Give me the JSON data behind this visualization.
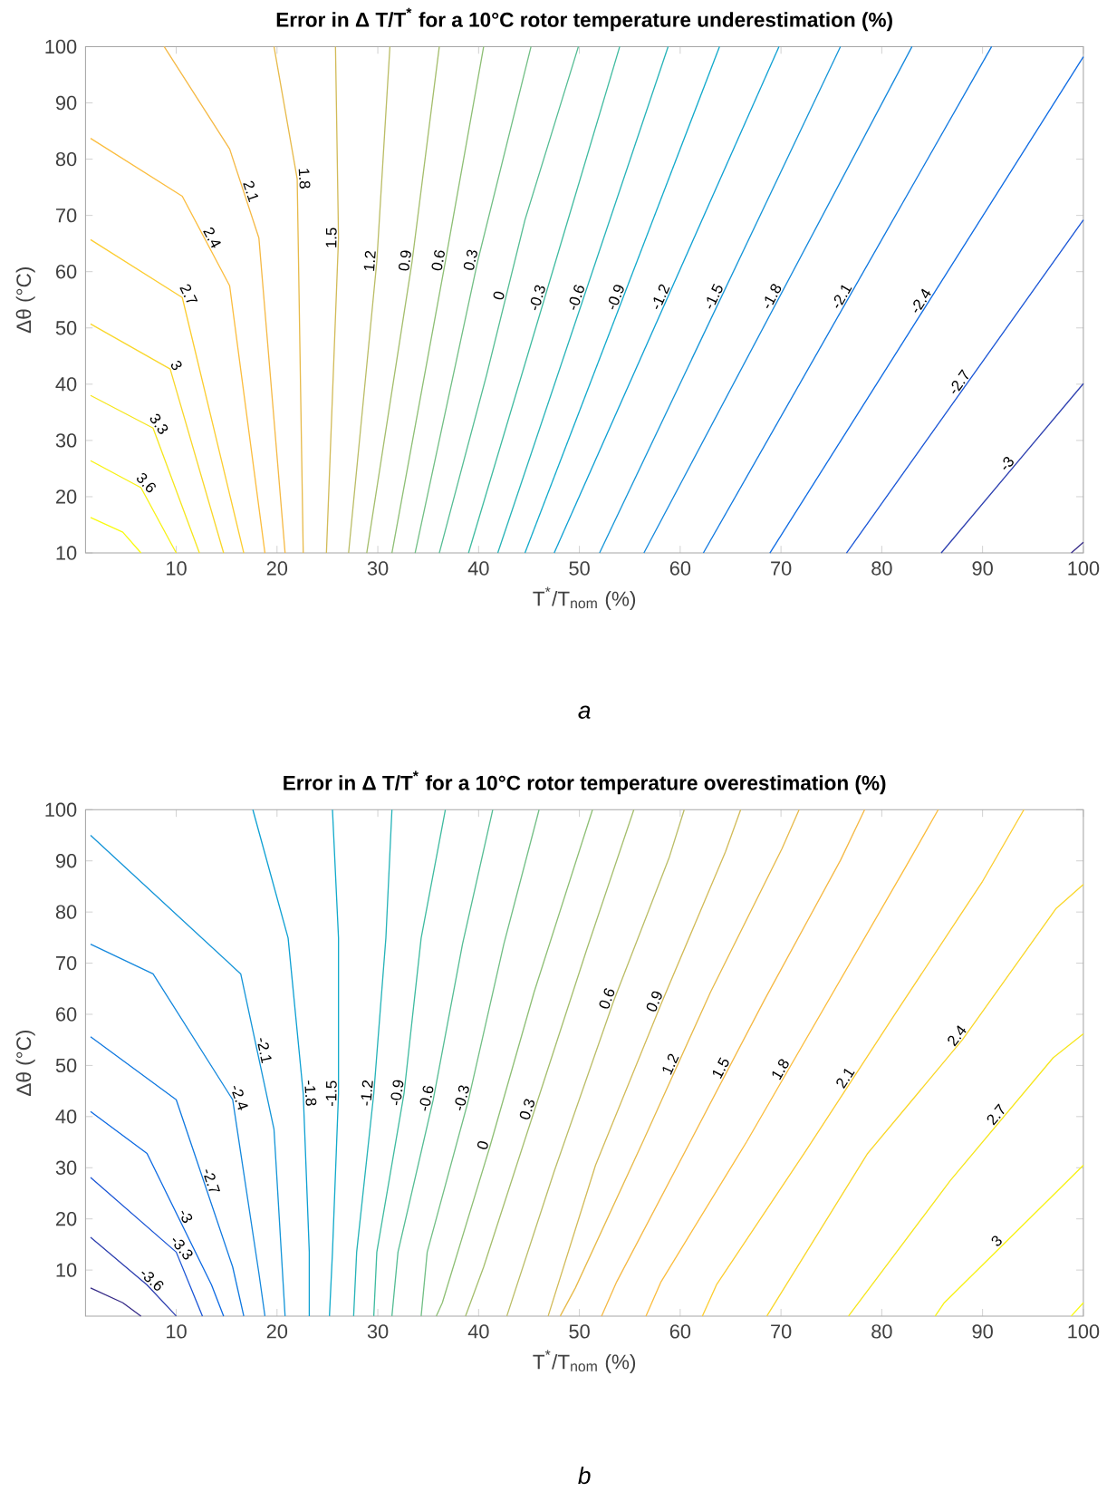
{
  "chart_data": [
    {
      "type": "line",
      "title": "Error in Δ T/T$^{*}$ for a 10°C rotor temperature underestimation (%)",
      "xlabel": "T$^{*}$/T$_{nom}$ (%)",
      "ylabel": "Δθ (°C)",
      "annotations": [
        "a"
      ],
      "xlim": [
        1,
        100
      ],
      "ylim": [
        10,
        100
      ],
      "xticks": [
        10,
        20,
        30,
        40,
        50,
        60,
        70,
        80,
        90,
        100
      ],
      "yticks": [
        10,
        20,
        30,
        40,
        50,
        60,
        70,
        80,
        90,
        100
      ],
      "series": [
        {
          "color": "#f9fb0e",
          "x": [
            1.5,
            4.7,
            6.5
          ],
          "values": [
            16.3,
            13.7,
            10
          ]
        },
        {
          "name": "3.6",
          "color": "#f8f213",
          "x": [
            1.5,
            6.5,
            10
          ],
          "values": [
            26.4,
            21.6,
            10
          ]
        },
        {
          "name": "3.3",
          "color": "#f6e61d",
          "x": [
            1.5,
            7.7,
            12.3
          ],
          "values": [
            38,
            32.2,
            10
          ]
        },
        {
          "name": "3",
          "color": "#f9d72a",
          "x": [
            1.5,
            9.4,
            14.7
          ],
          "values": [
            50.7,
            42.7,
            10
          ]
        },
        {
          "name": "2.7",
          "color": "#fccd30",
          "x": [
            1.5,
            10.6,
            16.7
          ],
          "values": [
            65.7,
            55.4,
            10
          ]
        },
        {
          "name": "2.4",
          "color": "#fbbd3e",
          "x": [
            1.5,
            10.6,
            15.3,
            18.8
          ],
          "values": [
            83.7,
            73.4,
            57.5,
            10
          ]
        },
        {
          "name": "2.1",
          "color": "#f5b945",
          "x": [
            8.8,
            15.3,
            18.2,
            20.8
          ],
          "values": [
            100,
            81.8,
            66,
            10
          ]
        },
        {
          "name": "1.8",
          "color": "#e7ba4a",
          "x": [
            19.7,
            22,
            22.6
          ],
          "values": [
            100,
            76.5,
            10
          ]
        },
        {
          "name": "1.5",
          "color": "#d2bb58",
          "x": [
            25.8,
            26.1,
            24.9
          ],
          "values": [
            100,
            66,
            10
          ]
        },
        {
          "name": "1.2",
          "color": "#bbbd66",
          "x": [
            31.2,
            29.9,
            27.1
          ],
          "values": [
            100,
            61.8,
            10
          ]
        },
        {
          "name": "0.9",
          "color": "#a5be6d",
          "x": [
            36.1,
            33.4,
            28.9
          ],
          "values": [
            100,
            61.8,
            10
          ]
        },
        {
          "name": "0.6",
          "color": "#8ebf75",
          "x": [
            40.5,
            36.7,
            31.4
          ],
          "values": [
            100,
            61.8,
            10
          ]
        },
        {
          "name": "0.3",
          "color": "#72bf85",
          "x": [
            45.2,
            39.9,
            33.7
          ],
          "values": [
            100,
            61.8,
            10
          ]
        },
        {
          "name": "0",
          "color": "#55bd94",
          "x": [
            49.9,
            44.6,
            40.8,
            36.1
          ],
          "values": [
            100,
            69.2,
            41.7,
            10
          ]
        },
        {
          "name": "-0.3",
          "color": "#3fbba0",
          "x": [
            39,
            54
          ],
          "values": [
            10,
            100
          ]
        },
        {
          "name": "-0.6",
          "color": "#26b3b8",
          "x": [
            41.9,
            58.8
          ],
          "values": [
            10,
            100
          ]
        },
        {
          "name": "-0.9",
          "color": "#12aacb",
          "x": [
            44.6,
            63.9
          ],
          "values": [
            10,
            100
          ]
        },
        {
          "name": "-1.2",
          "color": "#0ea0d3",
          "x": [
            47.5,
            69.8
          ],
          "values": [
            10,
            100
          ]
        },
        {
          "name": "-1.5",
          "color": "#1495d8",
          "x": [
            52,
            75.9
          ],
          "values": [
            10,
            100
          ]
        },
        {
          "name": "-1.8",
          "color": "#1488dd",
          "x": [
            56.4,
            83
          ],
          "values": [
            10,
            100
          ]
        },
        {
          "name": "-2.1",
          "color": "#0f78e0",
          "x": [
            62.3,
            90.9
          ],
          "values": [
            10,
            100
          ]
        },
        {
          "name": "-2.4",
          "color": "#0d6ae3",
          "x": [
            68.9,
            100
          ],
          "values": [
            10,
            98.2
          ]
        },
        {
          "name": "-2.7",
          "color": "#1a55d6",
          "x": [
            76.5,
            100
          ],
          "values": [
            10,
            69.2
          ]
        },
        {
          "name": "-3",
          "color": "#2d3fb0",
          "x": [
            85.9,
            100
          ],
          "values": [
            10,
            40.1
          ]
        },
        {
          "color": "#352a87",
          "x": [
            98.8,
            100
          ],
          "values": [
            10,
            11.9
          ]
        }
      ]
    },
    {
      "type": "line",
      "title": "Error in Δ T/T$^{*}$ for a 10°C rotor temperature overestimation (%)",
      "xlabel": "T$^{*}$/T$_{nom}$ (%)",
      "ylabel": "Δθ (°C)",
      "annotations": [
        "b"
      ],
      "xlim": [
        1,
        100
      ],
      "ylim": [
        1,
        100
      ],
      "xticks": [
        10,
        20,
        30,
        40,
        50,
        60,
        70,
        80,
        90,
        100
      ],
      "yticks": [
        10,
        20,
        30,
        40,
        50,
        60,
        70,
        80,
        90,
        100
      ],
      "series": [
        {
          "color": "#352a87",
          "x": [
            1.5,
            4.7,
            6.5
          ],
          "values": [
            6.5,
            3.6,
            1
          ]
        },
        {
          "name": "-3.6",
          "color": "#2d3fb0",
          "x": [
            1.5,
            7.1,
            10
          ],
          "values": [
            16.4,
            7.1,
            1
          ]
        },
        {
          "name": "-3.3",
          "color": "#1a55d6",
          "x": [
            1.5,
            10,
            12.6
          ],
          "values": [
            28.1,
            13.5,
            1
          ]
        },
        {
          "name": "-3",
          "color": "#0d6ae3",
          "x": [
            1.5,
            7.1,
            13.5,
            14.7
          ],
          "values": [
            41,
            32.8,
            7.1,
            1
          ]
        },
        {
          "name": "-2.7",
          "color": "#0f78e0",
          "x": [
            1.5,
            10,
            15.6,
            16.7
          ],
          "values": [
            55.6,
            43.3,
            10.6,
            1
          ]
        },
        {
          "name": "-2.4",
          "color": "#1488dd",
          "x": [
            1.5,
            7.7,
            15.6,
            18.2,
            18.8
          ],
          "values": [
            73.7,
            67.9,
            43.3,
            9.4,
            1
          ]
        },
        {
          "name": "-2.1",
          "color": "#1495d8",
          "x": [
            1.5,
            16.4,
            19.7,
            20.8
          ],
          "values": [
            95,
            67.9,
            37.5,
            1
          ]
        },
        {
          "name": "-1.8",
          "color": "#0ea0d3",
          "x": [
            17.6,
            21.1,
            22.6,
            23.2,
            23.2
          ],
          "values": [
            100,
            74.9,
            44.5,
            13.5,
            1
          ]
        },
        {
          "name": "-1.5",
          "color": "#12aacb",
          "x": [
            25.5,
            26.1,
            26.1,
            25.5,
            25.2
          ],
          "values": [
            100,
            74.9,
            44.5,
            13.5,
            1
          ]
        },
        {
          "name": "-1.2",
          "color": "#26b3b8",
          "x": [
            31.4,
            30.8,
            29.6,
            27.9,
            27.6
          ],
          "values": [
            100,
            74.9,
            44.5,
            13.5,
            1
          ]
        },
        {
          "name": "-0.9",
          "color": "#3fbba0",
          "x": [
            36.7,
            34.3,
            32.6,
            29.9,
            29.6
          ],
          "values": [
            100,
            74.9,
            44.5,
            13.5,
            1
          ]
        },
        {
          "name": "-0.6",
          "color": "#55bd94",
          "x": [
            41.4,
            38.4,
            35.5,
            32,
            31.4
          ],
          "values": [
            100,
            73.7,
            43.3,
            13.5,
            1
          ]
        },
        {
          "name": "-0.3",
          "color": "#72bf85",
          "x": [
            46,
            42.5,
            39,
            34.9,
            34.3
          ],
          "values": [
            100,
            73.7,
            43.3,
            13.5,
            1
          ]
        },
        {
          "name": "0",
          "color": "#8ebf75",
          "x": [
            51.3,
            45.5,
            41.1,
            36.4,
            35.8
          ],
          "values": [
            100,
            64.3,
            34,
            3.6,
            1
          ]
        },
        {
          "name": "0.3",
          "color": "#a5be6d",
          "x": [
            55.4,
            50.7,
            45.5,
            40.5,
            38.7
          ],
          "values": [
            100,
            72.5,
            41,
            10.6,
            1
          ]
        },
        {
          "name": "0.6",
          "color": "#bbbd66",
          "x": [
            60.4,
            58.9,
            53.4,
            47.5,
            42.8
          ],
          "values": [
            100,
            90.6,
            62.6,
            29.3,
            1
          ]
        },
        {
          "name": "0.9",
          "color": "#d2bb58",
          "x": [
            66,
            64.5,
            58.1,
            51.6,
            46.9
          ],
          "values": [
            100,
            91.8,
            62,
            30.5,
            1
          ]
        },
        {
          "name": "1.2",
          "color": "#e7ba4a",
          "x": [
            71.8,
            70.1,
            63,
            56.3,
            49.6,
            48.1
          ],
          "values": [
            100,
            92.4,
            64.3,
            35.1,
            6.5,
            1
          ]
        },
        {
          "name": "1.5",
          "color": "#f5b945",
          "x": [
            78.3,
            75.9,
            68.3,
            61,
            53.7,
            52.2
          ],
          "values": [
            100,
            90.1,
            62.6,
            35.1,
            7.7,
            1
          ]
        },
        {
          "name": "1.8",
          "color": "#fbbd3e",
          "x": [
            85.6,
            82.4,
            74.5,
            66.6,
            58.1,
            56.6
          ],
          "values": [
            100,
            88.9,
            62,
            35.1,
            7.7,
            1
          ]
        },
        {
          "name": "2.1",
          "color": "#fccd30",
          "x": [
            94.1,
            90,
            81.2,
            72.7,
            63.6,
            62.2
          ],
          "values": [
            100,
            86,
            59.7,
            34,
            7.1,
            1
          ]
        },
        {
          "name": "2.4",
          "color": "#f9d72a",
          "x": [
            100,
            97.3,
            88,
            78.6,
            68.6
          ],
          "values": [
            85.4,
            80.7,
            55,
            32.8,
            1
          ]
        },
        {
          "name": "2.7",
          "color": "#f6e61d",
          "x": [
            100,
            97,
            86.8,
            76.7
          ],
          "values": [
            56.2,
            51.5,
            27.5,
            1
          ]
        },
        {
          "name": "3",
          "color": "#f8f213",
          "x": [
            100,
            97.6,
            86.2,
            85.3
          ],
          "values": [
            30.5,
            25.8,
            3.6,
            1
          ]
        },
        {
          "color": "#f9fb0e",
          "x": [
            98.8,
            100
          ],
          "values": [
            1,
            3.6
          ]
        }
      ]
    }
  ]
}
